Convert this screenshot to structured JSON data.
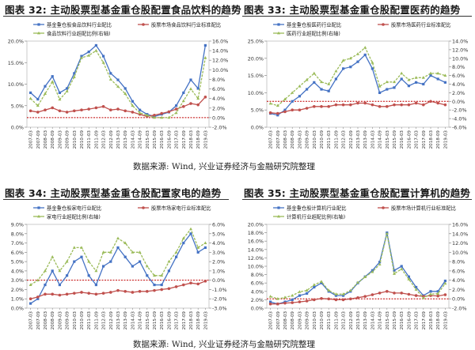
{
  "charts": [
    {
      "title": "图表 32: 主动股票型基金重仓股配置食品饮料的趋势",
      "legend": [
        "基金重仓股食品饮料行业配比",
        "股票市场食品饮料行业标准配比",
        "食品饮料行业超配比例(右轴)"
      ]
    },
    {
      "title": "图表 33: 主动股票型基金重仓股配置医药的趋势",
      "legend": [
        "基金重仓股医药行业配比",
        "股票市场医药行业标准配比",
        "医药行业超配比例(右轴)"
      ]
    },
    {
      "title": "图表 34: 主动股票型基金重仓股配置家电的趋势",
      "legend": [
        "基金重仓股家电行业配比",
        "股票市场家电行业标准配比",
        "家电行业超配比例(右轴)"
      ]
    },
    {
      "title": "图表 35: 主动股票型基金重仓股配置计算机的趋势",
      "legend": [
        "基金重仓股计算机行业配比",
        "股票市场计算机行业标准配比",
        "计算机行业超配比例(右轴)"
      ]
    }
  ],
  "sources": [
    "数据来源: Wind, 兴业证券经济与金融研究院整理",
    "数据来源: Wind, 兴业证券经济与金融研究院整理"
  ],
  "colors": {
    "fund": "#4472c4",
    "market": "#c0504d",
    "over": "#9bbb59",
    "zero": "#c00000"
  },
  "chart_data": [
    {
      "type": "line",
      "x": [
        "2007-03",
        "2007-09",
        "2008-03",
        "2008-09",
        "2009-03",
        "2009-09",
        "2010-03",
        "2010-09",
        "2011-03",
        "2011-09",
        "2012-03",
        "2012-09",
        "2013-03",
        "2013-09",
        "2014-03",
        "2014-09",
        "2015-03",
        "2015-09",
        "2016-03",
        "2016-09",
        "2017-03",
        "2017-09",
        "2018-03",
        "2018-09",
        "2019-03"
      ],
      "ylim": [
        0,
        20
      ],
      "yticks": [
        0,
        5,
        10,
        15,
        20
      ],
      "y2lim": [
        -2,
        16
      ],
      "y2ticks": [
        -2,
        0,
        2,
        4,
        6,
        8,
        10,
        12,
        14,
        16
      ],
      "series": [
        {
          "name": "基金重仓股食品饮料行业配比",
          "axis": "left",
          "values": [
            8.0,
            6.5,
            9.5,
            11.8,
            8.0,
            9.0,
            12.5,
            16.5,
            17.5,
            19.0,
            16.5,
            12.5,
            11.0,
            9.0,
            6.0,
            4.0,
            3.0,
            2.5,
            3.0,
            3.5,
            5.0,
            8.0,
            11.0,
            9.0,
            19.0
          ]
        },
        {
          "name": "股票市场食品饮料行业标准配比",
          "axis": "left",
          "values": [
            3.8,
            3.5,
            4.0,
            4.5,
            3.8,
            3.5,
            3.8,
            4.0,
            4.2,
            4.5,
            4.8,
            4.0,
            4.2,
            3.8,
            3.5,
            3.0,
            2.5,
            2.8,
            3.2,
            3.6,
            4.2,
            4.8,
            5.5,
            5.2,
            7.0
          ]
        },
        {
          "name": "食品饮料行业超配比例(右轴)",
          "axis": "right",
          "values": [
            4.0,
            2.5,
            5.0,
            7.5,
            3.8,
            5.5,
            8.5,
            12.5,
            13.0,
            14.0,
            11.5,
            8.0,
            6.5,
            5.0,
            2.5,
            1.0,
            0.5,
            0.0,
            0.0,
            0.0,
            1.0,
            3.5,
            6.0,
            4.0,
            12.5
          ]
        }
      ]
    },
    {
      "type": "line",
      "x": [
        "2007-03",
        "2007-09",
        "2008-03",
        "2008-09",
        "2009-03",
        "2009-09",
        "2010-03",
        "2010-09",
        "2011-03",
        "2011-09",
        "2012-03",
        "2012-09",
        "2013-03",
        "2013-09",
        "2014-03",
        "2014-09",
        "2015-03",
        "2015-09",
        "2016-03",
        "2016-09",
        "2017-03",
        "2017-09",
        "2018-03",
        "2018-09",
        "2019-03"
      ],
      "ylim": [
        0,
        25
      ],
      "yticks": [
        0,
        5,
        10,
        15,
        20,
        25
      ],
      "y2lim": [
        -6,
        14
      ],
      "y2ticks": [
        -6,
        -4,
        -2,
        0,
        2,
        4,
        6,
        8,
        10,
        12,
        14
      ],
      "series": [
        {
          "name": "基金重仓股医药行业配比",
          "axis": "left",
          "values": [
            4.0,
            3.5,
            5.0,
            7.5,
            9.0,
            11.0,
            13.0,
            11.0,
            10.5,
            14.0,
            17.0,
            17.5,
            19.0,
            21.0,
            17.0,
            10.0,
            11.0,
            11.5,
            14.0,
            12.0,
            13.0,
            12.5,
            15.0,
            14.0,
            13.0
          ]
        },
        {
          "name": "股票市场医药行业标准配比",
          "axis": "left",
          "values": [
            4.2,
            4.0,
            4.5,
            5.0,
            5.0,
            5.5,
            6.0,
            6.0,
            6.0,
            6.5,
            6.5,
            6.5,
            7.0,
            7.0,
            6.5,
            6.0,
            6.0,
            6.5,
            6.5,
            6.5,
            7.0,
            6.5,
            7.5,
            7.0,
            6.5
          ]
        },
        {
          "name": "医药行业超配比例(右轴)",
          "axis": "right",
          "values": [
            -0.5,
            -1.0,
            0.5,
            2.0,
            3.5,
            5.0,
            6.5,
            4.5,
            4.0,
            7.0,
            9.5,
            10.0,
            11.0,
            12.5,
            9.0,
            3.5,
            4.5,
            4.5,
            6.5,
            5.0,
            5.5,
            5.5,
            6.5,
            6.5,
            6.0
          ]
        }
      ]
    },
    {
      "type": "line",
      "x": [
        "2007-03",
        "2007-09",
        "2008-03",
        "2008-09",
        "2009-03",
        "2009-09",
        "2010-03",
        "2010-09",
        "2011-03",
        "2011-09",
        "2012-03",
        "2012-09",
        "2013-03",
        "2013-09",
        "2014-03",
        "2014-09",
        "2015-03",
        "2015-09",
        "2016-03",
        "2016-09",
        "2017-03",
        "2017-09",
        "2018-03",
        "2018-09",
        "2019-03"
      ],
      "ylim": [
        0,
        9
      ],
      "yticks": [
        0,
        1,
        2,
        3,
        4,
        5,
        6,
        7,
        8,
        9
      ],
      "y2lim": [
        -3,
        6
      ],
      "y2ticks": [
        -3,
        -2,
        -1,
        0,
        1,
        2,
        3,
        4,
        5,
        6
      ],
      "series": [
        {
          "name": "基金重仓股家电行业配比",
          "axis": "left",
          "values": [
            0.5,
            1.0,
            2.5,
            4.0,
            2.5,
            3.5,
            5.0,
            5.5,
            3.5,
            2.5,
            4.5,
            5.0,
            6.5,
            5.5,
            4.5,
            5.0,
            3.5,
            2.5,
            2.5,
            4.0,
            5.5,
            7.0,
            8.0,
            6.0,
            6.5
          ]
        },
        {
          "name": "股票市场家电行业标准配比",
          "axis": "left",
          "values": [
            1.0,
            1.2,
            1.5,
            1.5,
            1.4,
            1.5,
            1.6,
            1.7,
            1.6,
            1.5,
            1.6,
            1.7,
            1.9,
            1.8,
            1.7,
            1.8,
            1.8,
            1.9,
            2.0,
            2.1,
            2.3,
            2.5,
            2.7,
            2.6,
            2.9
          ]
        },
        {
          "name": "家电行业超配比例(右轴)",
          "axis": "right",
          "values": [
            -0.5,
            0.0,
            1.0,
            2.5,
            1.0,
            2.0,
            3.5,
            3.5,
            2.0,
            1.0,
            3.0,
            3.0,
            4.5,
            4.0,
            3.0,
            3.0,
            1.5,
            0.5,
            0.5,
            2.0,
            3.0,
            4.5,
            5.5,
            3.5,
            4.0
          ]
        }
      ]
    },
    {
      "type": "line",
      "x": [
        "2007-03",
        "2007-09",
        "2008-03",
        "2008-09",
        "2009-03",
        "2009-09",
        "2010-03",
        "2010-09",
        "2011-03",
        "2011-09",
        "2012-03",
        "2012-09",
        "2013-03",
        "2013-09",
        "2014-03",
        "2014-09",
        "2015-03",
        "2015-09",
        "2016-03",
        "2016-09",
        "2017-03",
        "2017-09",
        "2018-03",
        "2018-09",
        "2019-03"
      ],
      "ylim": [
        0,
        20
      ],
      "yticks": [
        0,
        2,
        4,
        6,
        8,
        10,
        12,
        14,
        16,
        18,
        20
      ],
      "y2lim": [
        -2,
        16
      ],
      "y2ticks": [
        -2,
        0,
        2,
        4,
        6,
        8,
        10,
        12,
        14,
        16
      ],
      "series": [
        {
          "name": "基金重仓股计算机行业配比",
          "axis": "left",
          "values": [
            1.5,
            1.0,
            1.5,
            2.0,
            3.0,
            3.5,
            5.0,
            6.0,
            4.0,
            3.0,
            3.0,
            4.0,
            6.0,
            7.5,
            9.0,
            11.0,
            18.0,
            9.0,
            10.0,
            7.5,
            5.0,
            3.0,
            4.0,
            4.0,
            6.5
          ]
        },
        {
          "name": "股票市场计算机行业标准配比",
          "axis": "left",
          "values": [
            1.0,
            1.0,
            1.2,
            1.3,
            1.5,
            1.7,
            2.0,
            2.3,
            2.2,
            2.0,
            2.0,
            2.2,
            2.5,
            2.8,
            3.2,
            3.6,
            4.0,
            3.6,
            3.6,
            3.3,
            3.0,
            2.8,
            3.0,
            2.9,
            3.2
          ]
        },
        {
          "name": "计算机行业超配比例(右轴)",
          "axis": "right",
          "values": [
            0.5,
            0.0,
            0.3,
            0.7,
            1.5,
            1.8,
            3.0,
            3.7,
            1.8,
            1.0,
            1.0,
            1.8,
            3.5,
            4.7,
            5.8,
            7.4,
            14.0,
            5.4,
            6.4,
            4.2,
            2.0,
            0.2,
            1.0,
            1.1,
            3.3
          ]
        }
      ]
    }
  ]
}
